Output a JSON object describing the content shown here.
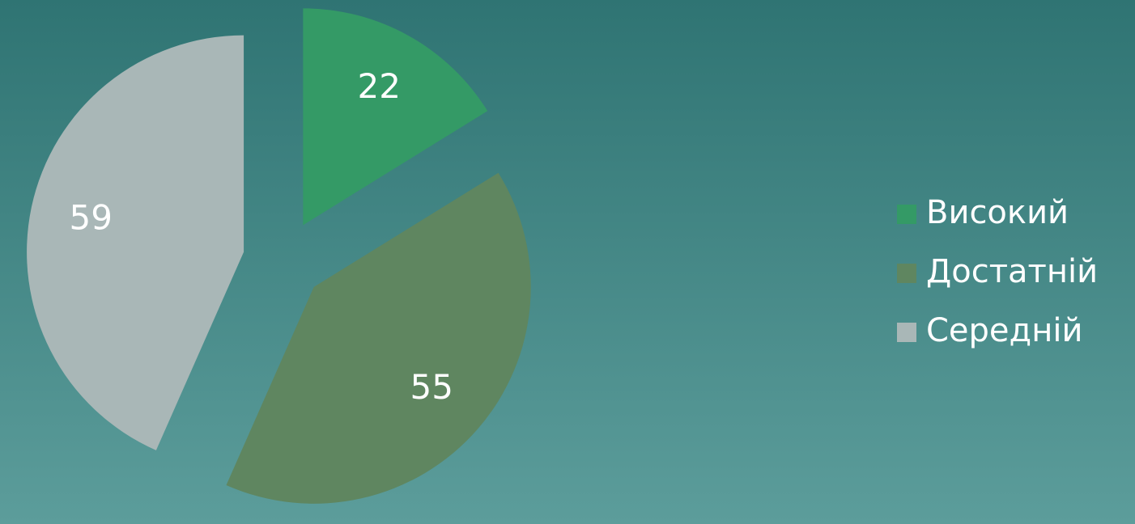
{
  "chart_data": {
    "type": "pie",
    "categories": [
      "Високий",
      "Достатній",
      "Середній"
    ],
    "values": [
      22,
      55,
      59
    ],
    "colors": [
      "#349a66",
      "#5f8660",
      "#a9b7b7"
    ],
    "exploded": true,
    "legend": "right"
  }
}
